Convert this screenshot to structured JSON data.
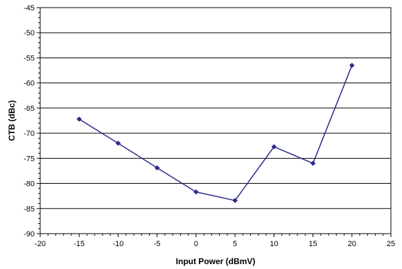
{
  "chart_data": {
    "type": "line",
    "title": "",
    "xlabel": "Input Power (dBmV)",
    "ylabel": "CTB (dBc)",
    "xlim": [
      -20,
      25
    ],
    "ylim": [
      -90,
      -45
    ],
    "xticks": [
      -20,
      -15,
      -10,
      -5,
      0,
      5,
      10,
      15,
      20,
      25
    ],
    "yticks": [
      -45,
      -50,
      -55,
      -60,
      -65,
      -70,
      -75,
      -80,
      -85,
      -90
    ],
    "grid": true,
    "legend": "none",
    "series": [
      {
        "x": [
          -15,
          -10,
          -5,
          0,
          5,
          10,
          15,
          20
        ],
        "y": [
          -67.2,
          -72.0,
          -76.9,
          -81.7,
          -83.4,
          -72.7,
          -76.0,
          -56.5
        ],
        "color": "#2b2b8a",
        "marker": "diamond"
      }
    ]
  }
}
